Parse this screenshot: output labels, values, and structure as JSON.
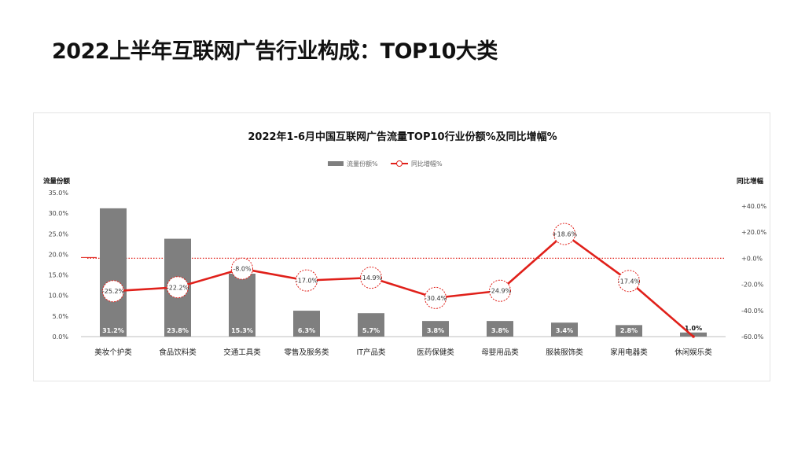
{
  "page": {
    "title": "2022上半年互联网广告行业构成：TOP10大类"
  },
  "chart_data": {
    "type": "bar",
    "title": "2022年1-6月中国互联网广告流量TOP10行业份额%及同比增幅%",
    "y_left_title": "流量份额",
    "y_right_title": "同比增幅",
    "legend_position": "top-center",
    "categories": [
      "美妆个护类",
      "食品饮料类",
      "交通工具类",
      "零售及服务类",
      "IT产品类",
      "医药保健类",
      "母婴用品类",
      "服装服饰类",
      "家用电器类",
      "休闲娱乐类"
    ],
    "series": [
      {
        "name": "流量份额%",
        "type": "bar",
        "axis": "left",
        "values": [
          31.2,
          23.8,
          15.3,
          6.3,
          5.7,
          3.8,
          3.8,
          3.4,
          2.8,
          1.0
        ],
        "labels": [
          "31.2%",
          "23.8%",
          "15.3%",
          "6.3%",
          "5.7%",
          "3.8%",
          "3.8%",
          "3.4%",
          "2.8%",
          "1.0%"
        ]
      },
      {
        "name": "同比增幅%",
        "type": "line",
        "axis": "right",
        "values": [
          -25.2,
          -22.2,
          -8.0,
          -17.0,
          -14.9,
          -30.4,
          -24.9,
          18.6,
          -17.4,
          -60.0
        ],
        "labels": [
          "-25.2%",
          "-22.2%",
          "-8.0%",
          "-17.0%",
          "-14.9%",
          "-30.4%",
          "-24.9%",
          "+18.6%",
          "-17.4%",
          ""
        ]
      }
    ],
    "y_left": {
      "min": 0,
      "max": 35,
      "ticks": [
        "0.0%",
        "5.0%",
        "10.0%",
        "15.0%",
        "20.0%",
        "25.0%",
        "30.0%",
        "35.0%"
      ]
    },
    "y_right": {
      "min": -60,
      "max": 40,
      "ticks": [
        "-60.0%",
        "-40.0%",
        "-20.0%",
        "+0.0%",
        "+20.0%",
        "+40.0%"
      ]
    },
    "reference_line": {
      "axis": "right",
      "value": 0,
      "style": "dotted"
    },
    "colors": {
      "bar": "#7f7f7f",
      "line": "#e0201a",
      "reference": "#e0201a"
    }
  }
}
